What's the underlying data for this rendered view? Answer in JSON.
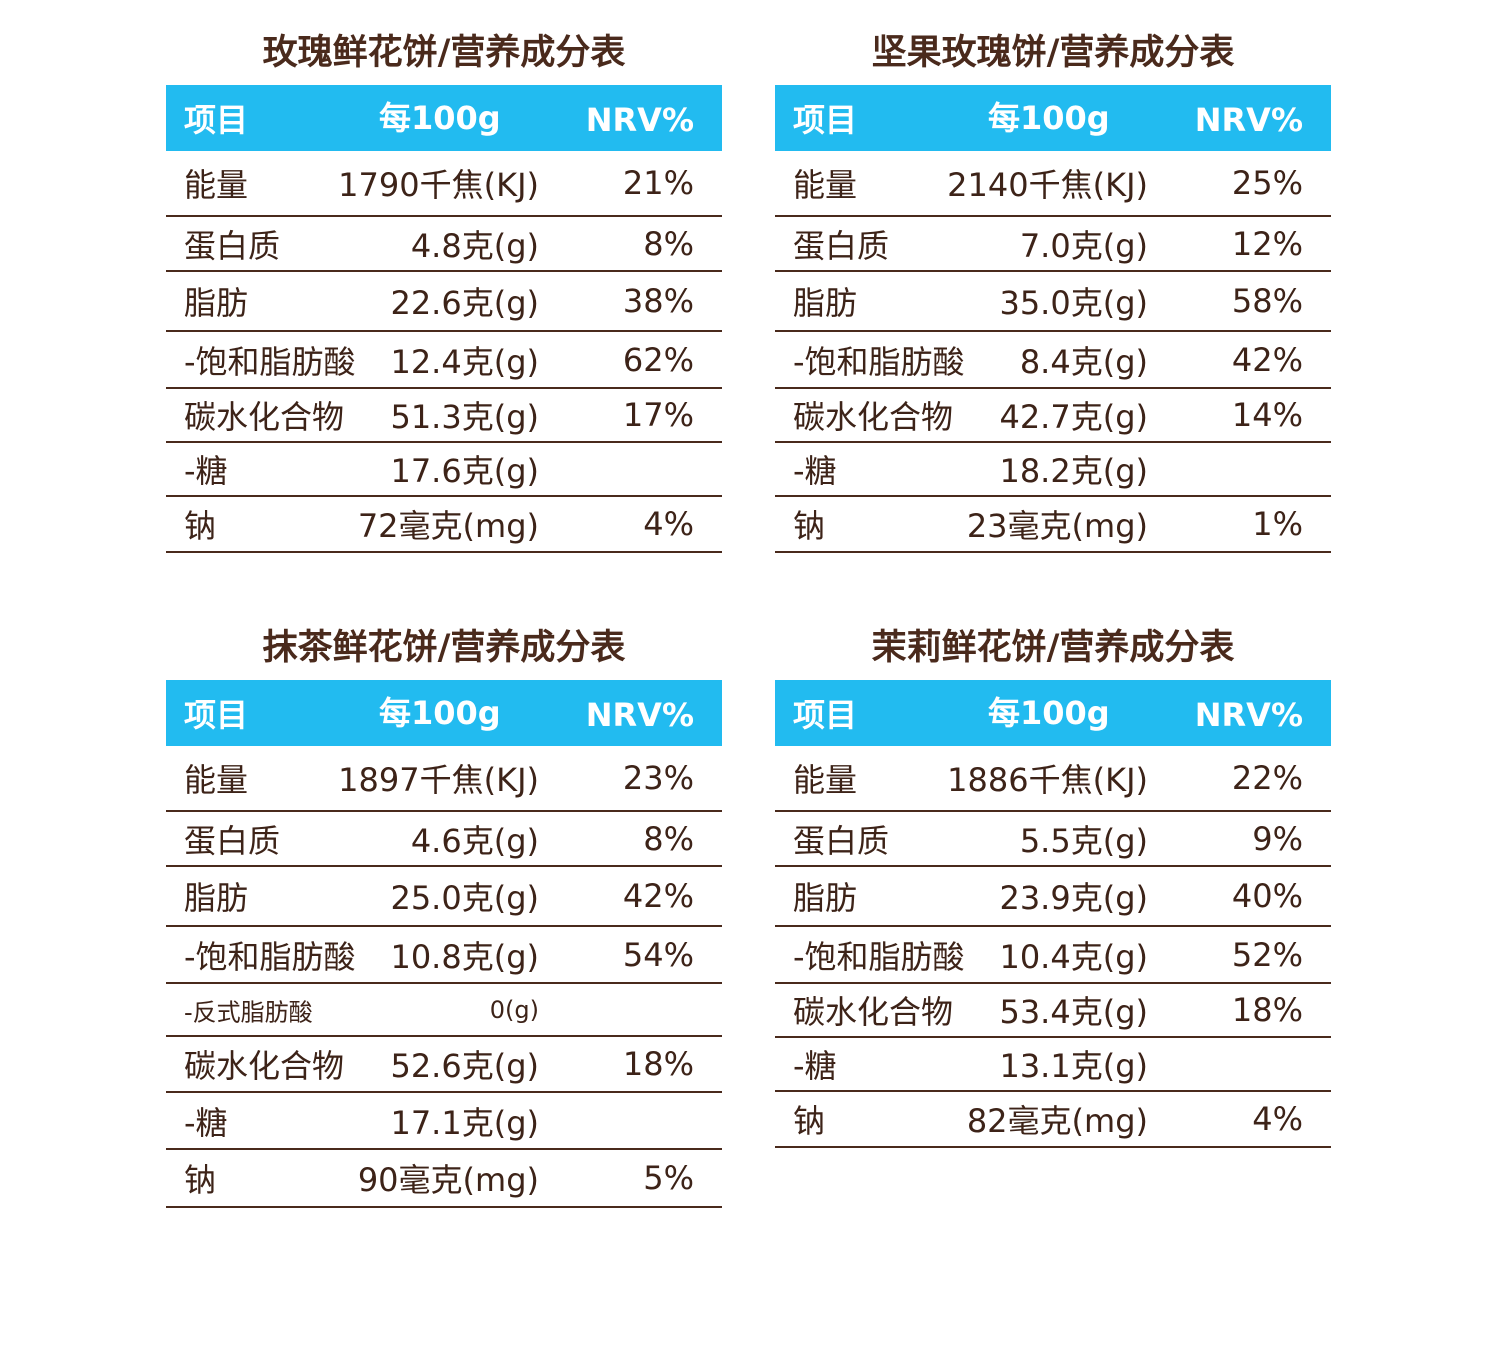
{
  "header_labels": {
    "item": "项目",
    "amount": "每100g",
    "nrv": "NRV%"
  },
  "tables": [
    {
      "title": "玫瑰鲜花饼/营养成分表",
      "rows": [
        {
          "name": "能量",
          "amount": "1790千焦(KJ)",
          "nrv": "21%"
        },
        {
          "name": "蛋白质",
          "amount": "4.8克(g)",
          "nrv": "8%"
        },
        {
          "name": "脂肪",
          "amount": "22.6克(g)",
          "nrv": "38%"
        },
        {
          "name": "-饱和脂肪酸",
          "amount": "12.4克(g)",
          "nrv": "62%"
        },
        {
          "name": "碳水化合物",
          "amount": "51.3克(g)",
          "nrv": "17%"
        },
        {
          "name": "-糖",
          "amount": "17.6克(g)",
          "nrv": ""
        },
        {
          "name": "钠",
          "amount": "72毫克(mg)",
          "nrv": "4%"
        }
      ]
    },
    {
      "title": "坚果玫瑰饼/营养成分表",
      "rows": [
        {
          "name": "能量",
          "amount": "2140千焦(KJ)",
          "nrv": "25%"
        },
        {
          "name": "蛋白质",
          "amount": "7.0克(g)",
          "nrv": "12%"
        },
        {
          "name": "脂肪",
          "amount": "35.0克(g)",
          "nrv": "58%"
        },
        {
          "name": "-饱和脂肪酸",
          "amount": "8.4克(g)",
          "nrv": "42%"
        },
        {
          "name": "碳水化合物",
          "amount": "42.7克(g)",
          "nrv": "14%"
        },
        {
          "name": "-糖",
          "amount": "18.2克(g)",
          "nrv": ""
        },
        {
          "name": "钠",
          "amount": "23毫克(mg)",
          "nrv": "1%"
        }
      ]
    },
    {
      "title": "抹茶鲜花饼/营养成分表",
      "rows": [
        {
          "name": "能量",
          "amount": "1897千焦(KJ)",
          "nrv": "23%"
        },
        {
          "name": "蛋白质",
          "amount": "4.6克(g)",
          "nrv": "8%"
        },
        {
          "name": "脂肪",
          "amount": "25.0克(g)",
          "nrv": "42%"
        },
        {
          "name": "-饱和脂肪酸",
          "amount": "10.8克(g)",
          "nrv": "54%"
        },
        {
          "name": "-反式脂肪酸",
          "amount": "0(g)",
          "nrv": ""
        },
        {
          "name": "碳水化合物",
          "amount": "52.6克(g)",
          "nrv": "18%"
        },
        {
          "name": "-糖",
          "amount": "17.1克(g)",
          "nrv": ""
        },
        {
          "name": "钠",
          "amount": "90毫克(mg)",
          "nrv": "5%"
        }
      ]
    },
    {
      "title": "茉莉鲜花饼/营养成分表",
      "rows": [
        {
          "name": "能量",
          "amount": "1886千焦(KJ)",
          "nrv": "22%"
        },
        {
          "name": "蛋白质",
          "amount": "5.5克(g)",
          "nrv": "9%"
        },
        {
          "name": "脂肪",
          "amount": "23.9克(g)",
          "nrv": "40%"
        },
        {
          "name": "-饱和脂肪酸",
          "amount": "10.4克(g)",
          "nrv": "52%"
        },
        {
          "name": "碳水化合物",
          "amount": "53.4克(g)",
          "nrv": "18%"
        },
        {
          "name": "-糖",
          "amount": "13.1克(g)",
          "nrv": ""
        },
        {
          "name": "钠",
          "amount": "82毫克(mg)",
          "nrv": "4%"
        }
      ]
    }
  ],
  "colors": {
    "header_bg": "#22bbf0",
    "text": "#3d2318",
    "rule": "#4a2a1c"
  }
}
